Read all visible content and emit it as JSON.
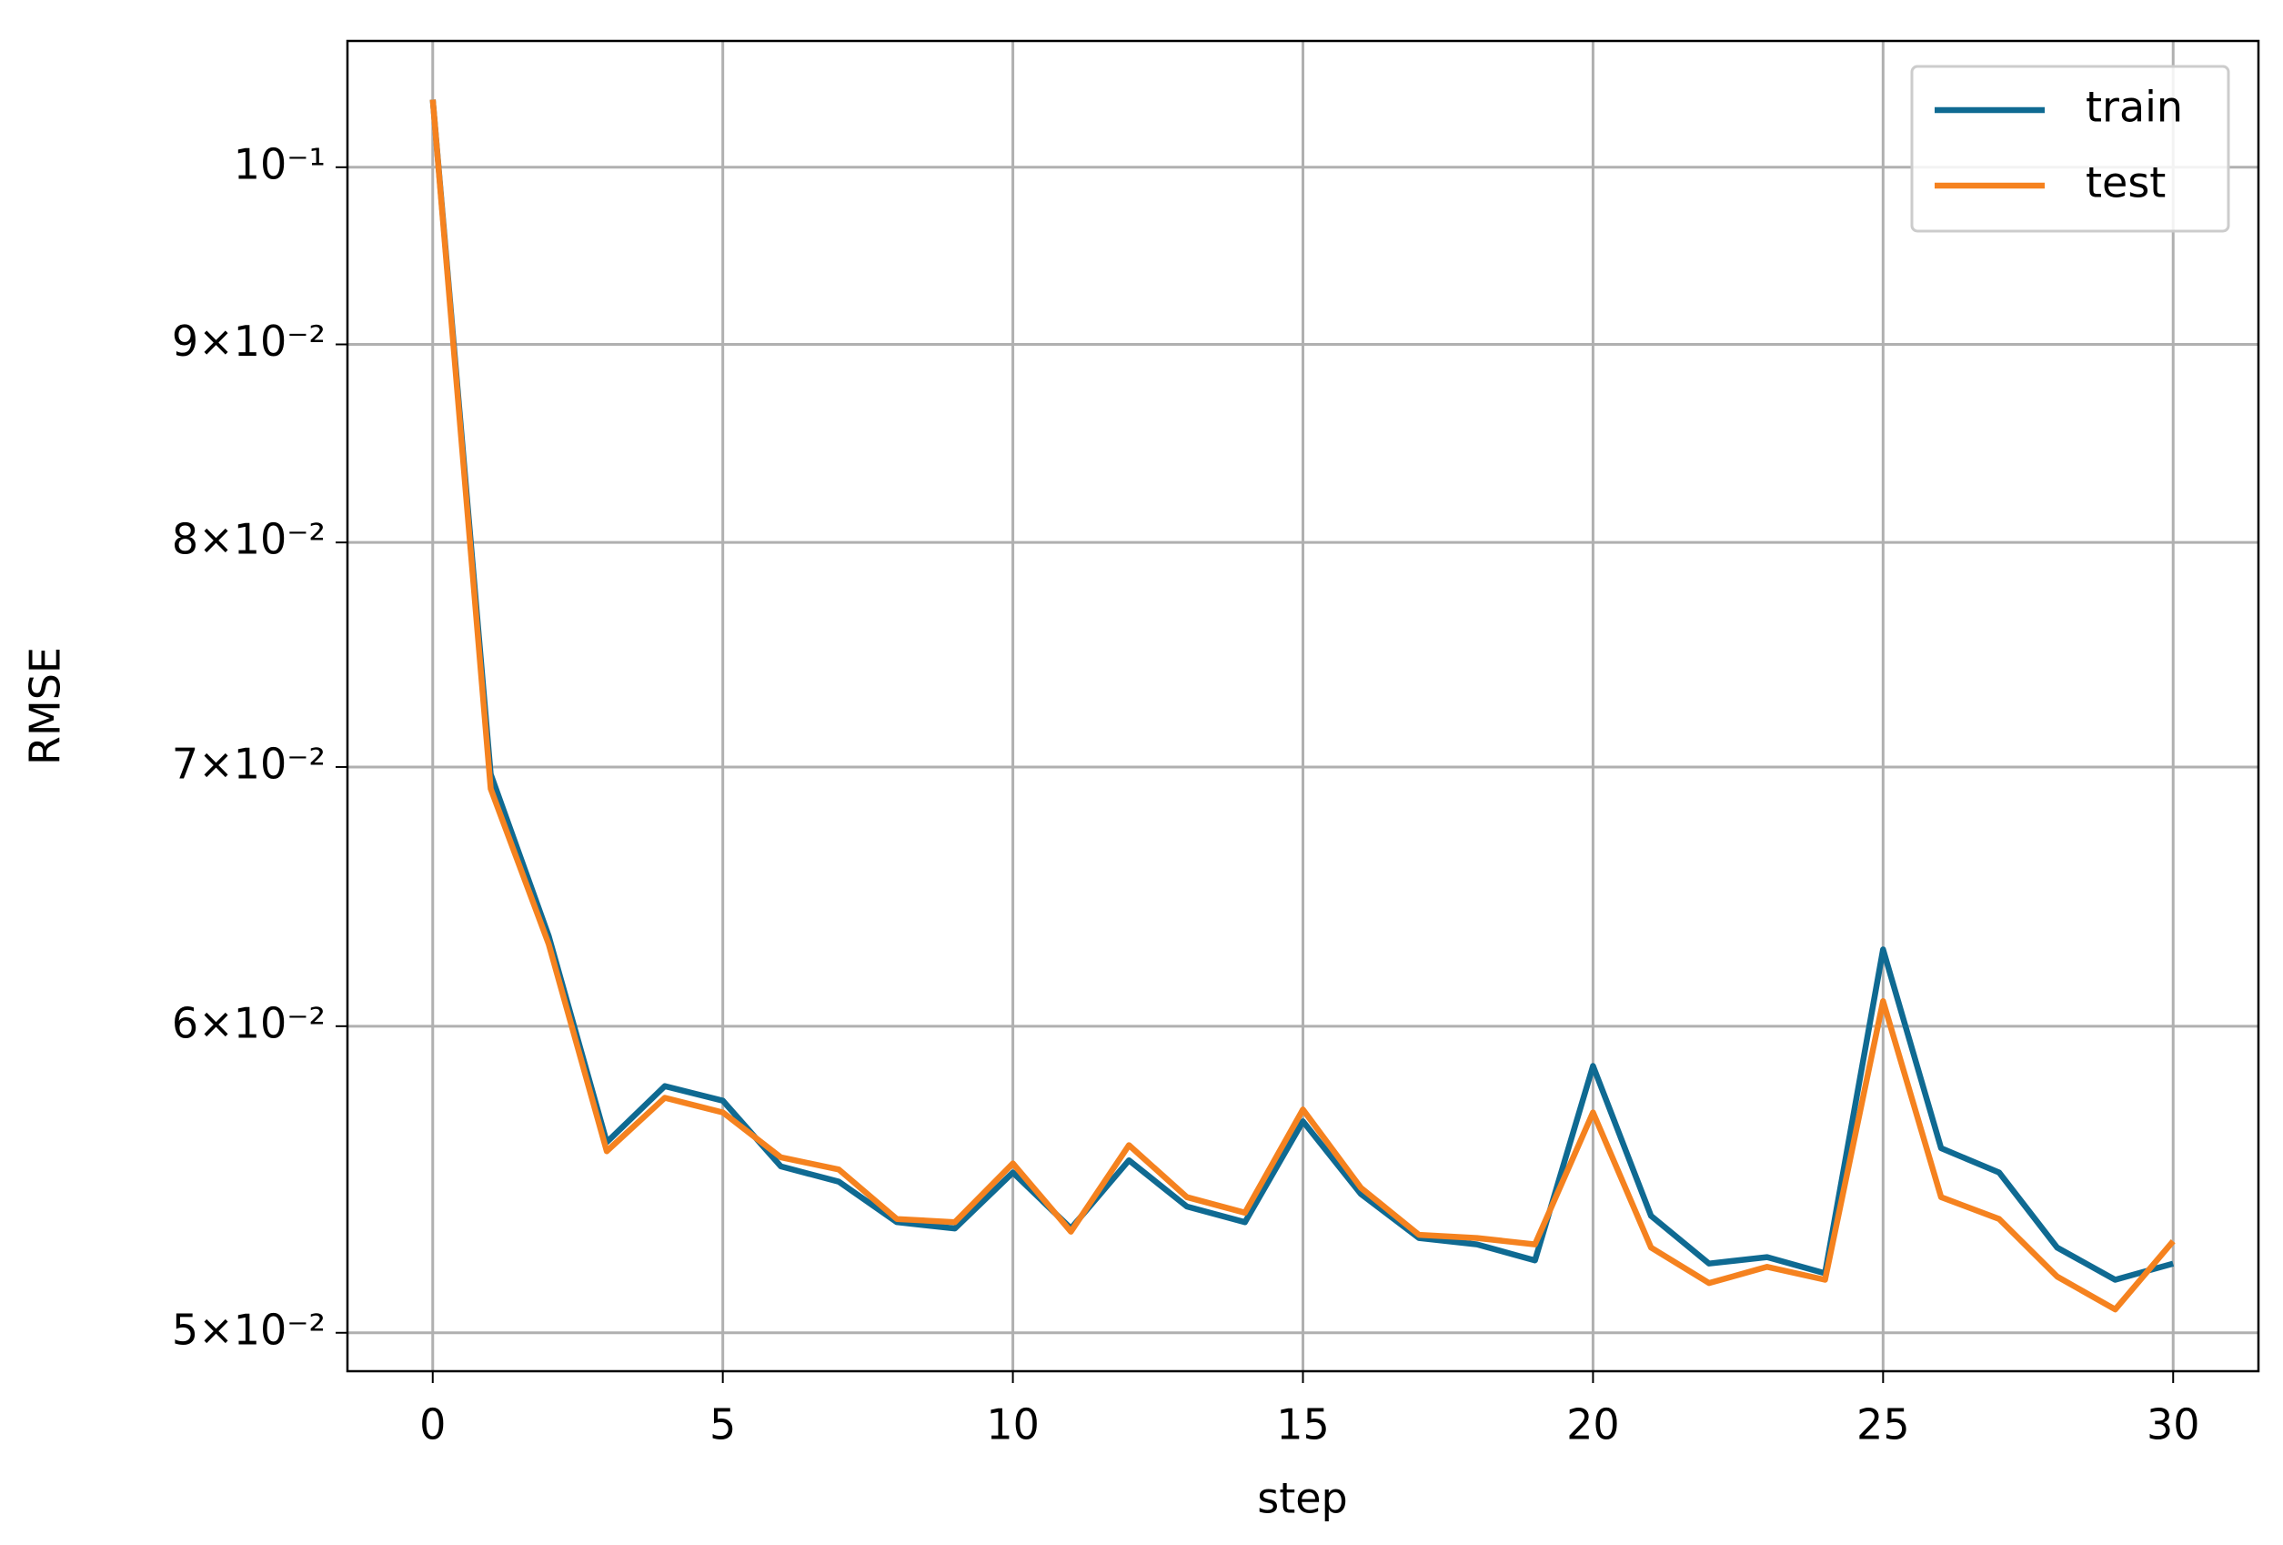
{
  "chart_data": {
    "type": "line",
    "x_label": "step",
    "y_label": "RMSE",
    "x": [
      0,
      1,
      2,
      3,
      4,
      5,
      6,
      7,
      8,
      9,
      10,
      11,
      12,
      13,
      14,
      15,
      16,
      17,
      18,
      19,
      20,
      21,
      22,
      23,
      24,
      25,
      26,
      27,
      28,
      29,
      30
    ],
    "series": [
      {
        "name": "train",
        "color": "#0f6a92",
        "values": [
          0.1041,
          0.0697,
          0.0633,
          0.056,
          0.0579,
          0.0574,
          0.0552,
          0.0547,
          0.0534,
          0.0532,
          0.055,
          0.0532,
          0.0554,
          0.0539,
          0.0534,
          0.0567,
          0.0543,
          0.0529,
          0.0527,
          0.0522,
          0.0586,
          0.0536,
          0.0521,
          0.0523,
          0.0518,
          0.0628,
          0.0558,
          0.055,
          0.0526,
          0.0516,
          0.0521
        ]
      },
      {
        "name": "test",
        "color": "#f5821f",
        "values": [
          0.1041,
          0.0691,
          0.063,
          0.0557,
          0.0575,
          0.057,
          0.0555,
          0.0551,
          0.0535,
          0.0534,
          0.0553,
          0.0531,
          0.0559,
          0.0542,
          0.0537,
          0.0571,
          0.0545,
          0.053,
          0.0529,
          0.0527,
          0.057,
          0.0526,
          0.0515,
          0.052,
          0.0516,
          0.0609,
          0.0542,
          0.0535,
          0.0517,
          0.0507,
          0.0528
        ]
      }
    ],
    "xlim": [
      -1.47,
      31.47
    ],
    "ylim": [
      0.04887,
      0.1078
    ],
    "xticks": [
      0,
      5,
      10,
      15,
      20,
      25,
      30
    ],
    "yticks": [
      {
        "value": 0.05,
        "label": "5×10⁻²"
      },
      {
        "value": 0.06,
        "label": "6×10⁻²"
      },
      {
        "value": 0.07,
        "label": "7×10⁻²"
      },
      {
        "value": 0.08,
        "label": "8×10⁻²"
      },
      {
        "value": 0.09,
        "label": "9×10⁻²"
      },
      {
        "value": 0.1,
        "label": "10⁻¹"
      }
    ],
    "y_scale": "log",
    "grid": true,
    "legend": "upper right"
  }
}
